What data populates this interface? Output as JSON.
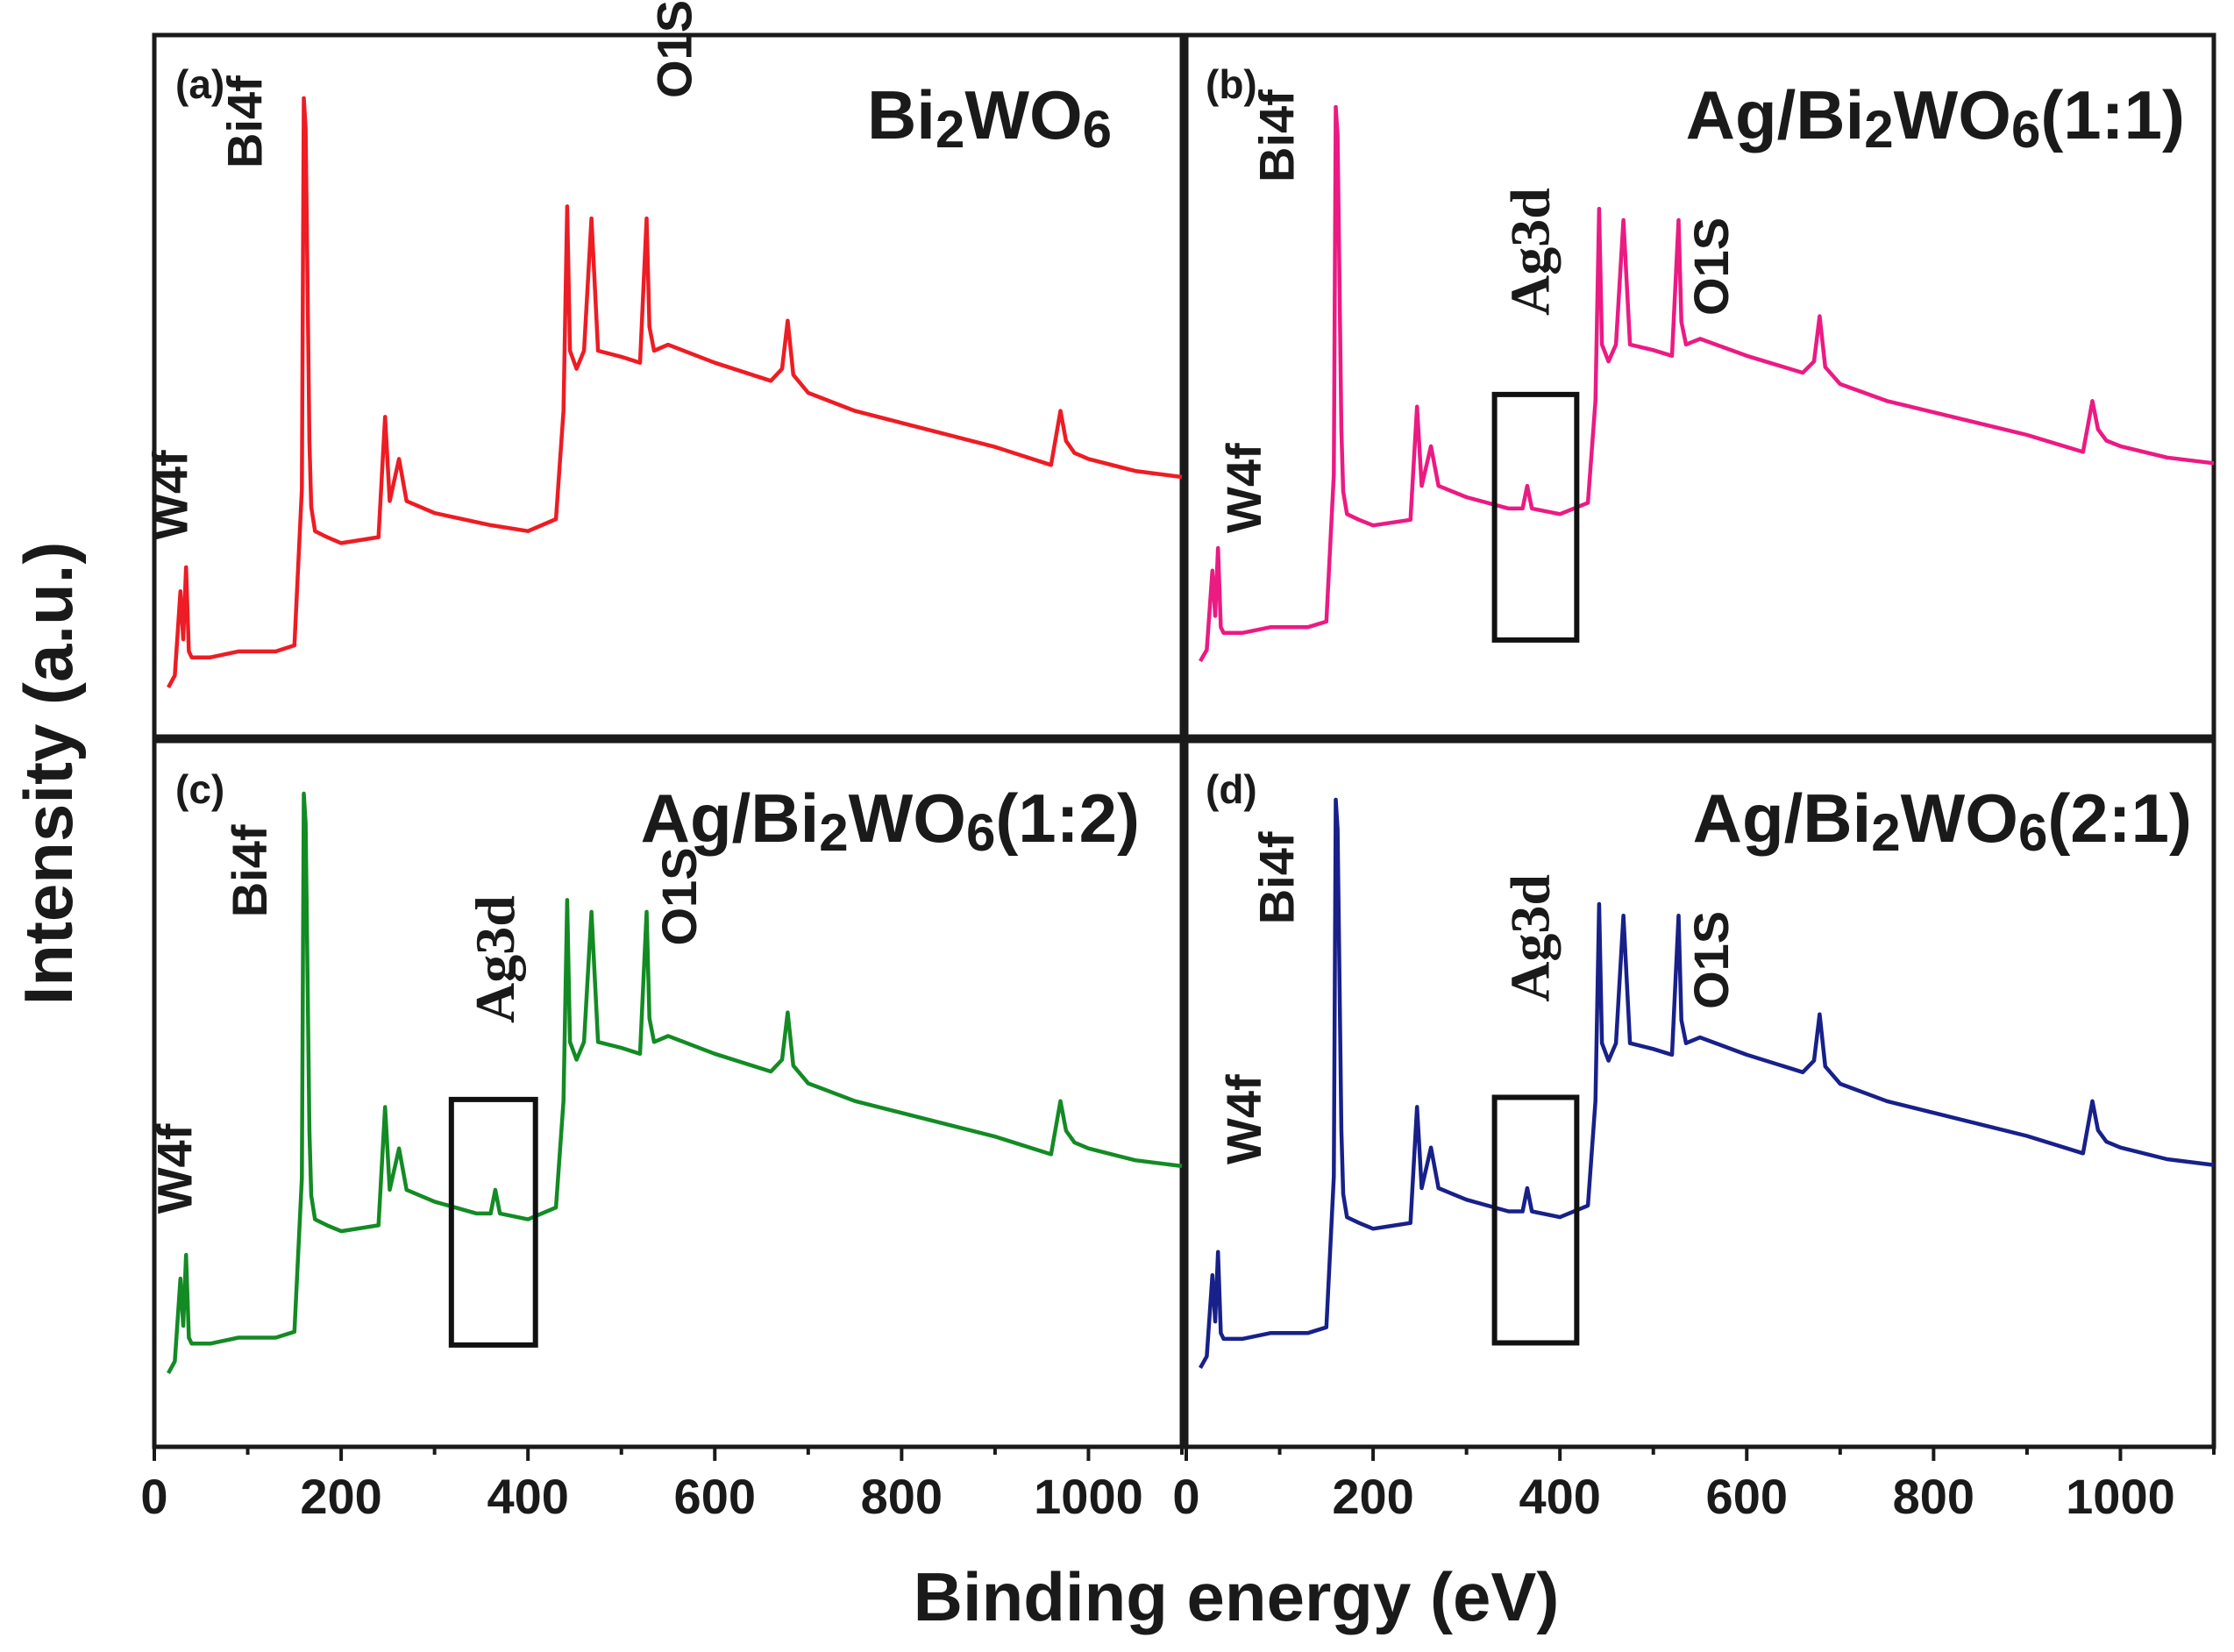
{
  "chart_data": {
    "type": "line",
    "title": "",
    "xlabel": "Binding energy (eV)",
    "ylabel": "Intensity (a.u.)",
    "xlim": [
      0,
      1100
    ],
    "x_ticks": [
      0,
      200,
      400,
      600,
      800,
      1000
    ],
    "grid": false,
    "panels": [
      {
        "label": "(a)",
        "title_parts": [
          "Bi",
          "2",
          "WO",
          "6",
          ""
        ],
        "color": "#ee1c24",
        "series": {
          "name": "Bi2WO6",
          "x": [
            15,
            22,
            28,
            31,
            34,
            37,
            40,
            46,
            60,
            90,
            110,
            130,
            150,
            158,
            160,
            162,
            164,
            166,
            168,
            172,
            185,
            200,
            240,
            247,
            252,
            262,
            270,
            300,
            360,
            400,
            430,
            438,
            442,
            445,
            452,
            460,
            468,
            475,
            500,
            520,
            527,
            530,
            535,
            550,
            600,
            660,
            672,
            678,
            684,
            700,
            750,
            800,
            900,
            960,
            970,
            976,
            985,
            1000,
            1050,
            1100
          ],
          "y": [
            2,
            4,
            18,
            10,
            22,
            8,
            7,
            7,
            7,
            8,
            8,
            8,
            9,
            35,
            100,
            95,
            70,
            43,
            32,
            28,
            27,
            26,
            27,
            47,
            33,
            40,
            33,
            31,
            29,
            28,
            30,
            48,
            82,
            58,
            55,
            58,
            80,
            58,
            57,
            56,
            80,
            62,
            58,
            59,
            56,
            53,
            55,
            63,
            54,
            51,
            48,
            46,
            42,
            39,
            48,
            43,
            41,
            40,
            38,
            37
          ]
        },
        "annotations": [
          {
            "text": "W4f",
            "x": 35,
            "rel_y": 0.72
          },
          {
            "text": "Bi4f",
            "x": 115,
            "rel_y": 0.19
          },
          {
            "text": "O1S",
            "x": 575,
            "rel_y": 0.09
          }
        ],
        "highlight_box": null
      },
      {
        "label": "(b)",
        "title_parts": [
          "Ag/Bi",
          "2",
          "WO",
          "6",
          "(1:1)"
        ],
        "color": "#ec1a83",
        "series": {
          "name": "Ag/Bi2WO6(1:1)",
          "x": [
            15,
            22,
            28,
            31,
            34,
            37,
            40,
            46,
            60,
            90,
            110,
            130,
            150,
            158,
            160,
            162,
            164,
            166,
            168,
            172,
            185,
            200,
            240,
            247,
            252,
            262,
            270,
            300,
            345,
            360,
            365,
            370,
            400,
            430,
            438,
            442,
            445,
            452,
            460,
            468,
            475,
            500,
            520,
            527,
            530,
            535,
            550,
            600,
            660,
            672,
            678,
            684,
            700,
            750,
            800,
            900,
            960,
            970,
            976,
            985,
            1000,
            1050,
            1100
          ],
          "y": [
            2,
            4,
            18,
            10,
            22,
            8,
            7,
            7,
            7,
            8,
            8,
            8,
            9,
            35,
            100,
            95,
            70,
            43,
            32,
            28,
            27,
            26,
            27,
            47,
            33,
            40,
            33,
            31,
            29,
            29,
            33,
            29,
            28,
            30,
            48,
            82,
            58,
            55,
            58,
            80,
            58,
            57,
            56,
            80,
            62,
            58,
            59,
            56,
            53,
            55,
            63,
            54,
            51,
            48,
            46,
            42,
            39,
            48,
            43,
            41,
            40,
            38,
            37
          ]
        },
        "annotations": [
          {
            "text": "W4f",
            "x": 80,
            "rel_y": 0.71
          },
          {
            "text": "Bi4f",
            "x": 115,
            "rel_y": 0.21
          },
          {
            "text": "Ag3d",
            "x": 388,
            "rel_y": 0.4,
            "style": "serif"
          },
          {
            "text": "O1S",
            "x": 580,
            "rel_y": 0.4
          }
        ],
        "highlight_box": {
          "x0": 330,
          "x1": 418
        }
      },
      {
        "label": "(c)",
        "title_parts": [
          "Ag/Bi",
          "2",
          "WO",
          "6",
          "(1:2)"
        ],
        "color": "#138b24",
        "series": {
          "name": "Ag/Bi2WO6(1:2)",
          "x": [
            15,
            22,
            28,
            31,
            34,
            37,
            40,
            46,
            60,
            90,
            110,
            130,
            150,
            158,
            160,
            162,
            164,
            166,
            168,
            172,
            185,
            200,
            240,
            247,
            252,
            262,
            270,
            300,
            345,
            360,
            365,
            370,
            400,
            430,
            438,
            442,
            445,
            452,
            460,
            468,
            475,
            500,
            520,
            527,
            530,
            535,
            550,
            600,
            660,
            672,
            678,
            684,
            700,
            750,
            800,
            900,
            960,
            970,
            976,
            985,
            1000,
            1050,
            1100
          ],
          "y": [
            2,
            4,
            18,
            10,
            22,
            8,
            7,
            7,
            7,
            8,
            8,
            8,
            9,
            35,
            100,
            95,
            70,
            43,
            32,
            28,
            27,
            26,
            27,
            47,
            33,
            40,
            33,
            31,
            29,
            29,
            33,
            29,
            28,
            30,
            48,
            82,
            58,
            55,
            58,
            80,
            58,
            57,
            56,
            80,
            62,
            58,
            59,
            56,
            53,
            55,
            63,
            54,
            51,
            48,
            46,
            42,
            39,
            48,
            43,
            41,
            40,
            38,
            37
          ]
        },
        "annotations": [
          {
            "text": "W4f",
            "x": 40,
            "rel_y": 0.67
          },
          {
            "text": "Bi4f",
            "x": 120,
            "rel_y": 0.25
          },
          {
            "text": "Ag3d",
            "x": 385,
            "rel_y": 0.4,
            "style": "serif"
          },
          {
            "text": "O1S",
            "x": 580,
            "rel_y": 0.29
          }
        ],
        "highlight_box": {
          "x0": 318,
          "x1": 408
        }
      },
      {
        "label": "(d)",
        "title_parts": [
          "Ag/Bi",
          "2",
          "WO",
          "6",
          "(2:1)"
        ],
        "color": "#18208a",
        "series": {
          "name": "Ag/Bi2WO6(2:1)",
          "x": [
            15,
            22,
            28,
            31,
            34,
            37,
            40,
            46,
            60,
            90,
            110,
            130,
            150,
            158,
            160,
            162,
            164,
            166,
            168,
            172,
            185,
            200,
            240,
            247,
            252,
            262,
            270,
            300,
            345,
            360,
            365,
            370,
            400,
            430,
            438,
            442,
            445,
            452,
            460,
            468,
            475,
            500,
            520,
            527,
            530,
            535,
            550,
            600,
            660,
            672,
            678,
            684,
            700,
            750,
            800,
            900,
            960,
            970,
            976,
            985,
            1000,
            1050,
            1100
          ],
          "y": [
            2,
            4,
            18,
            10,
            22,
            8,
            7,
            7,
            7,
            8,
            8,
            8,
            9,
            35,
            100,
            95,
            70,
            43,
            32,
            28,
            27,
            26,
            27,
            47,
            33,
            40,
            33,
            31,
            29,
            29,
            33,
            29,
            28,
            30,
            48,
            82,
            58,
            55,
            58,
            80,
            58,
            57,
            56,
            80,
            62,
            58,
            59,
            56,
            53,
            55,
            63,
            54,
            51,
            48,
            46,
            42,
            39,
            48,
            43,
            41,
            40,
            38,
            37
          ]
        },
        "annotations": [
          {
            "text": "W4f",
            "x": 80,
            "rel_y": 0.6
          },
          {
            "text": "Bi4f",
            "x": 115,
            "rel_y": 0.26
          },
          {
            "text": "Ag3d",
            "x": 388,
            "rel_y": 0.37,
            "style": "serif"
          },
          {
            "text": "O1S",
            "x": 580,
            "rel_y": 0.38
          }
        ],
        "highlight_box": {
          "x0": 330,
          "x1": 418
        }
      }
    ]
  }
}
